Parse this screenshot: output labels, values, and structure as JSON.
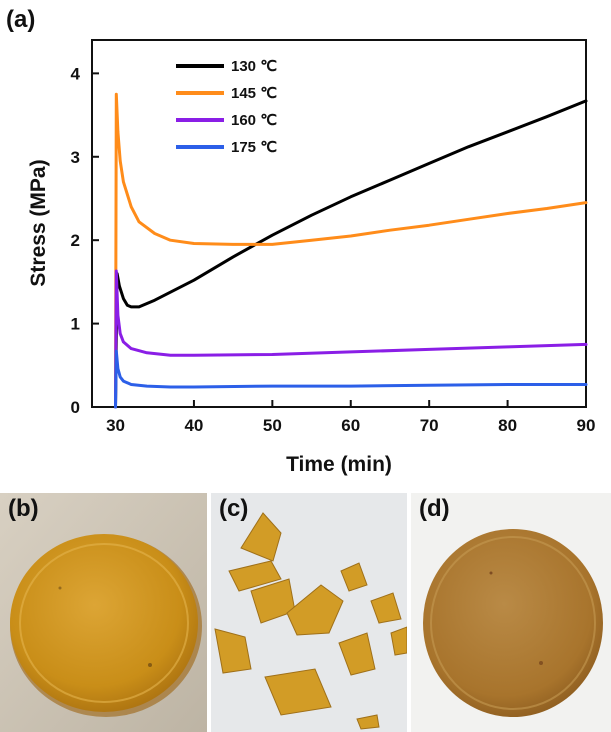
{
  "panels": {
    "a": "(a)",
    "b": "(b)",
    "c": "(c)",
    "d": "(d)"
  },
  "chart_data": {
    "type": "line",
    "title": "",
    "xlabel": "Time (min)",
    "ylabel": "Stress (MPa)",
    "xlim": [
      27,
      90
    ],
    "ylim": [
      0,
      4.4
    ],
    "xticks": [
      30,
      40,
      50,
      60,
      70,
      80,
      90
    ],
    "yticks": [
      0,
      1,
      2,
      3,
      4
    ],
    "legend_position": "top-left",
    "series": [
      {
        "name": "130 ℃",
        "color": "#000000",
        "x": [
          30,
          30.2,
          30.5,
          31,
          31.5,
          32,
          33,
          35,
          40,
          45,
          50,
          55,
          60,
          65,
          70,
          75,
          80,
          85,
          90
        ],
        "y": [
          0,
          1.6,
          1.45,
          1.3,
          1.22,
          1.2,
          1.2,
          1.28,
          1.52,
          1.8,
          2.06,
          2.3,
          2.52,
          2.72,
          2.92,
          3.12,
          3.3,
          3.48,
          3.67
        ]
      },
      {
        "name": "145 ℃",
        "color": "#ff8c1a",
        "x": [
          30,
          30.1,
          30.3,
          30.6,
          31,
          32,
          33,
          35,
          37,
          40,
          45,
          50,
          55,
          60,
          65,
          70,
          75,
          80,
          85,
          90
        ],
        "y": [
          0,
          3.75,
          3.3,
          2.95,
          2.7,
          2.4,
          2.22,
          2.08,
          2.0,
          1.96,
          1.95,
          1.95,
          2.0,
          2.05,
          2.12,
          2.18,
          2.25,
          2.32,
          2.38,
          2.45
        ]
      },
      {
        "name": "160 ℃",
        "color": "#8a1ee6",
        "x": [
          30,
          30.1,
          30.3,
          30.6,
          31,
          32,
          34,
          37,
          40,
          50,
          60,
          70,
          80,
          90
        ],
        "y": [
          0,
          1.63,
          1.1,
          0.88,
          0.78,
          0.7,
          0.65,
          0.62,
          0.62,
          0.63,
          0.66,
          0.69,
          0.72,
          0.75
        ]
      },
      {
        "name": "175 ℃",
        "color": "#2c5fe8",
        "x": [
          30,
          30.1,
          30.3,
          30.6,
          31,
          32,
          34,
          37,
          40,
          50,
          60,
          70,
          80,
          90
        ],
        "y": [
          0,
          0.67,
          0.46,
          0.36,
          0.31,
          0.27,
          0.25,
          0.24,
          0.24,
          0.25,
          0.25,
          0.26,
          0.27,
          0.27
        ]
      }
    ]
  },
  "colors": {
    "axis": "#111111",
    "photo_b_background": "#cfc7b8",
    "photo_c_background": "#e6e8ea",
    "photo_d_background": "#f2f2f0",
    "disk_b": "#c98e18",
    "disk_d": "#a8742c",
    "fragment": "#d1981c"
  }
}
